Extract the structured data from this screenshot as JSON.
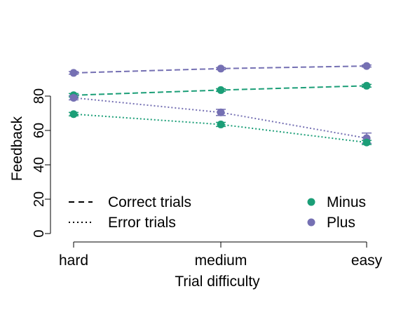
{
  "chart_data": {
    "type": "line",
    "title": "",
    "xlabel": "Trial difficulty",
    "ylabel": "Feedback",
    "categories": [
      "hard",
      "medium",
      "easy"
    ],
    "ylim": [
      0,
      100
    ],
    "yticks": [
      0,
      20,
      40,
      60,
      80
    ],
    "grid": false,
    "legend_left": {
      "placement": "bottom-left",
      "entries": [
        {
          "label": "Correct trials",
          "linestyle": "dashed"
        },
        {
          "label": "Error trials",
          "linestyle": "dotted"
        }
      ]
    },
    "legend_right": {
      "placement": "bottom-right",
      "entries": [
        {
          "label": "Minus",
          "color": "#1b9e77"
        },
        {
          "label": "Plus",
          "color": "#7570b3"
        }
      ]
    },
    "series": [
      {
        "group": "Plus",
        "trials": "Correct trials",
        "color": "#7570b3",
        "linestyle": "dashed",
        "values": [
          93.5,
          96,
          97.5
        ],
        "errors": [
          0.8,
          0.6,
          0.6
        ]
      },
      {
        "group": "Minus",
        "trials": "Correct trials",
        "color": "#1b9e77",
        "linestyle": "dashed",
        "values": [
          80.5,
          83.5,
          86
        ],
        "errors": [
          1.0,
          0.8,
          0.8
        ]
      },
      {
        "group": "Plus",
        "trials": "Error trials",
        "color": "#7570b3",
        "linestyle": "dotted",
        "values": [
          79,
          70.5,
          55.5
        ],
        "errors": [
          1.2,
          1.8,
          3.0
        ]
      },
      {
        "group": "Minus",
        "trials": "Error trials",
        "color": "#1b9e77",
        "linestyle": "dotted",
        "values": [
          69.5,
          63.5,
          53
        ],
        "errors": [
          1.0,
          1.2,
          1.2
        ]
      }
    ]
  }
}
